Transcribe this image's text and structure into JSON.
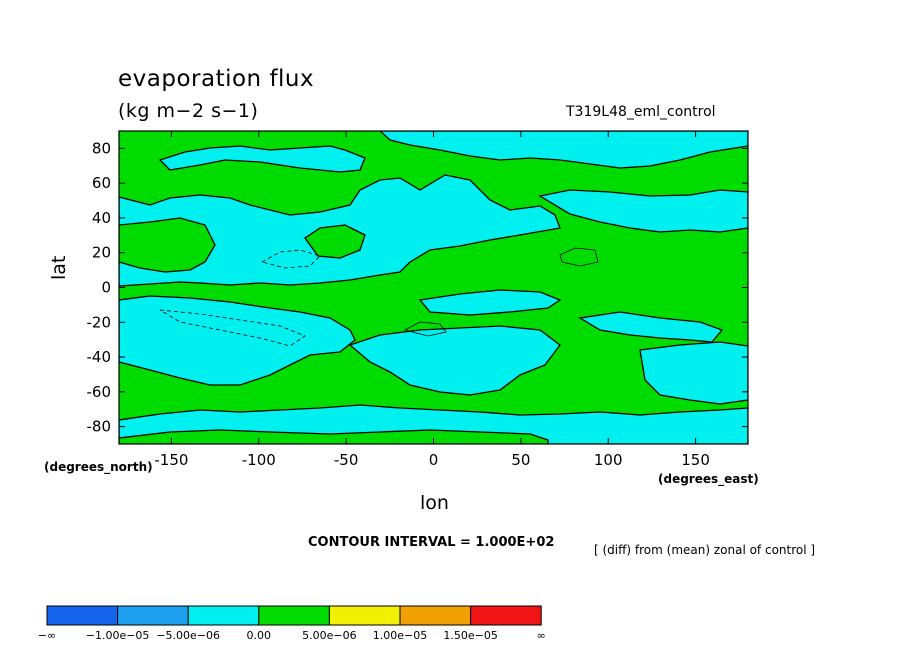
{
  "chart_data": {
    "type": "heatmap",
    "title": "evaporation flux",
    "units": "(kg m−2 s−1)",
    "run_label": "T319L48_eml_control",
    "xlabel": "lon",
    "x_unit": "(degrees_east)",
    "ylabel": "lat",
    "y_unit": "(degrees_north)",
    "xlim": [
      -180,
      180
    ],
    "ylim": [
      -90,
      90
    ],
    "x_ticks": [
      -150,
      -100,
      -50,
      0,
      50,
      100,
      150
    ],
    "y_ticks": [
      80,
      60,
      40,
      20,
      0,
      -20,
      -40,
      -60,
      -80
    ],
    "contour_interval": "CONTOUR INTERVAL = 1.000E+02",
    "note": "[ (diff) from (mean) zonal of control ]",
    "colorbar": {
      "colors": [
        "#1464f0",
        "#1ea0f0",
        "#00f0f0",
        "#00dc00",
        "#f0f000",
        "#f0a000",
        "#f01414"
      ],
      "labels": [
        "−∞",
        "−1.00e−05",
        "−5.00e−06",
        "0.00",
        "5.00e−06",
        "1.00e−05",
        "1.50e−05",
        "∞"
      ]
    },
    "regions": [
      {
        "sign": "negative",
        "color": "#00f0f0",
        "lat_range": [
          62,
          78
        ],
        "lon_range": [
          -170,
          -70
        ],
        "label": "north polar cyan band"
      },
      {
        "sign": "negative",
        "color": "#00f0f0",
        "lat_range": [
          5,
          45
        ],
        "lon_range": [
          -170,
          60
        ],
        "label": "north subtropical cyan"
      },
      {
        "sign": "positive",
        "color": "#00dc00",
        "lat_range": [
          -25,
          40
        ],
        "lon_range": [
          60,
          180
        ],
        "label": "tropical green band"
      },
      {
        "sign": "negative",
        "color": "#00f0f0",
        "lat_range": [
          -50,
          -10
        ],
        "lon_range": [
          -180,
          -80
        ],
        "label": "south-east pacific cyan"
      },
      {
        "sign": "positive",
        "color": "#00dc00",
        "lat_range": [
          -80,
          -40
        ],
        "lon_range": [
          -180,
          180
        ],
        "label": "southern green band"
      }
    ]
  }
}
